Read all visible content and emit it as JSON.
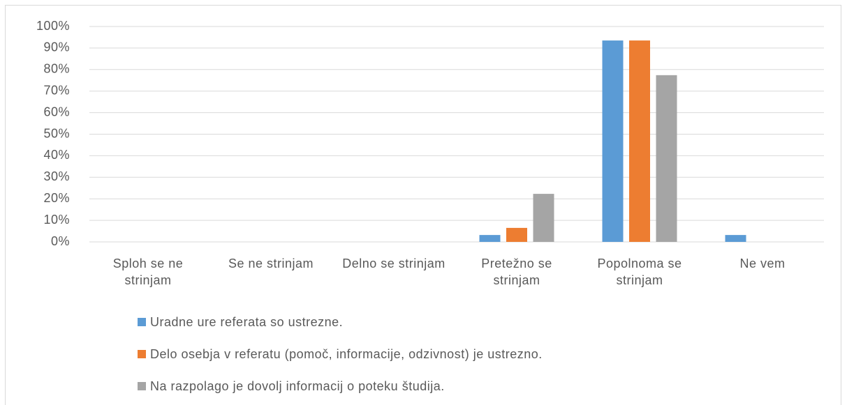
{
  "chart_data": {
    "type": "bar",
    "categories": [
      "Sploh se ne strinjam",
      "Se ne strinjam",
      "Delno se strinjam",
      "Pretežno se strinjam",
      "Popolnoma se strinjam",
      "Ne vem"
    ],
    "series": [
      {
        "name": "Uradne ure referata so ustrezne.",
        "color": "#5b9bd5",
        "values": [
          0,
          0,
          0,
          3.2,
          93.5,
          3.2
        ]
      },
      {
        "name": "Delo osebja v referatu (pomoč, informacije, odzivnost) je ustrezno.",
        "color": "#ed7d31",
        "values": [
          0,
          0,
          0,
          6.5,
          93.5,
          0
        ]
      },
      {
        "name": "Na razpolago je dovolj informacij o poteku študija.",
        "color": "#a5a5a5",
        "values": [
          0,
          0,
          0,
          22.3,
          77.4,
          0
        ]
      }
    ],
    "ylim": [
      0,
      100
    ],
    "yticks": [
      {
        "value": 0,
        "label": "0%"
      },
      {
        "value": 10,
        "label": "10%"
      },
      {
        "value": 20,
        "label": "20%"
      },
      {
        "value": 30,
        "label": "30%"
      },
      {
        "value": 40,
        "label": "40%"
      },
      {
        "value": 50,
        "label": "50%"
      },
      {
        "value": 60,
        "label": "60%"
      },
      {
        "value": 70,
        "label": "70%"
      },
      {
        "value": 80,
        "label": "80%"
      },
      {
        "value": 90,
        "label": "90%"
      },
      {
        "value": 100,
        "label": "100%"
      }
    ],
    "grid": true,
    "legend": "bottom"
  }
}
